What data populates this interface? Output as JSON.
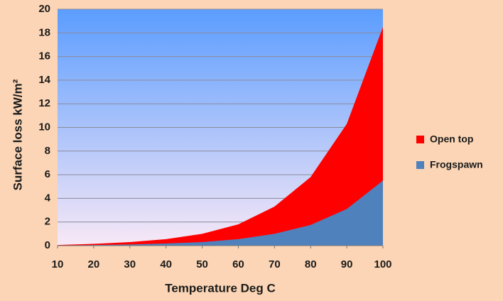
{
  "chart_data": {
    "type": "area",
    "x": [
      10,
      20,
      30,
      40,
      50,
      60,
      70,
      80,
      90,
      100
    ],
    "series": [
      {
        "name": "Open top",
        "color": "#ff0000",
        "values": [
          0.05,
          0.15,
          0.3,
          0.55,
          1.0,
          1.8,
          3.3,
          5.8,
          10.3,
          18.5
        ]
      },
      {
        "name": "Frogspawn",
        "color": "#4f81bd",
        "values": [
          0.02,
          0.05,
          0.1,
          0.18,
          0.3,
          0.55,
          1.0,
          1.75,
          3.1,
          5.5
        ]
      }
    ],
    "x_label": "Temperature Deg C",
    "y_label": "Surface loss kW/m²",
    "xlim": [
      10,
      100
    ],
    "xticks": [
      10,
      20,
      30,
      40,
      50,
      60,
      70,
      80,
      90,
      100
    ],
    "ylim": [
      0,
      20
    ],
    "yticks": [
      0,
      2,
      4,
      6,
      8,
      10,
      12,
      14,
      16,
      18,
      20
    ],
    "grid": true,
    "legend": "right"
  }
}
